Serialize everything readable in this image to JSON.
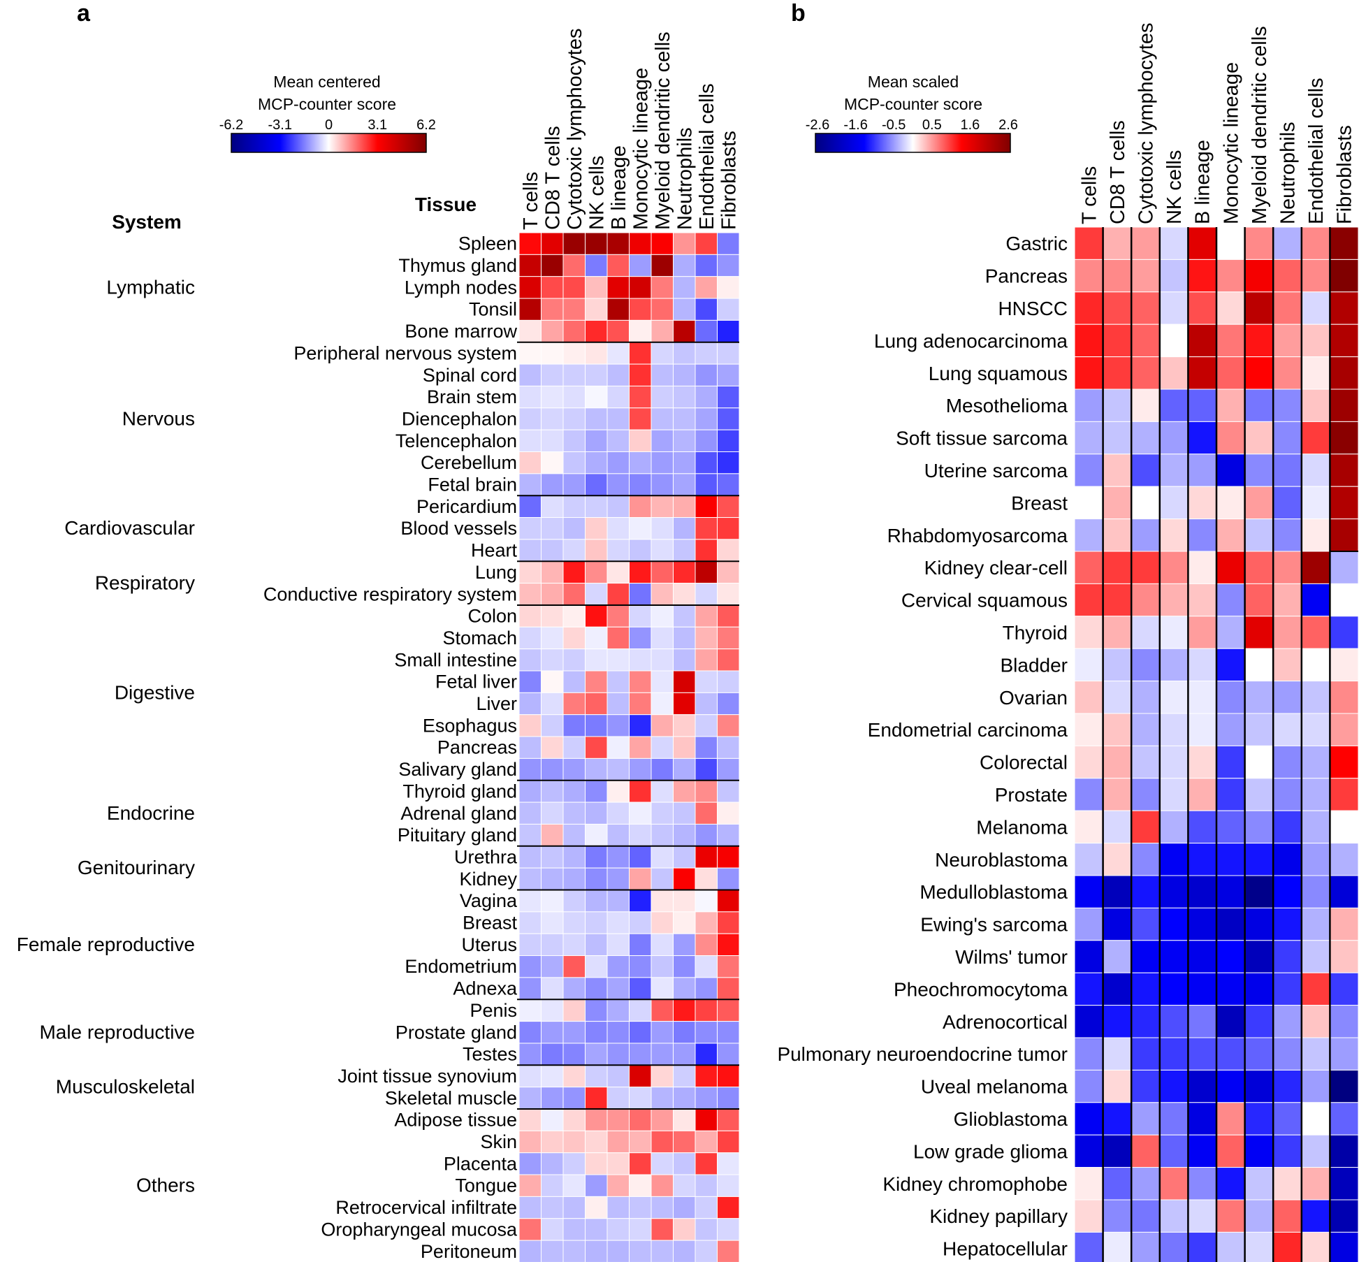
{
  "chart_data": [
    {
      "type": "heatmap",
      "panel_label": "a",
      "legend": {
        "title_line1": "Mean centered",
        "title_line2": "MCP-counter score",
        "ticks": [
          "-6.2",
          "-3.1",
          "0",
          "3.1",
          "6.2"
        ],
        "range": [
          -6.2,
          6.2
        ]
      },
      "system_header": "System",
      "tissue_header": "Tissue",
      "columns": [
        "T cells",
        "CD8 T cells",
        "Cytotoxic lymphocytes",
        "NK cells",
        "B lineage",
        "Monocytic lineage",
        "Myeloid dendritic cells",
        "Neutrophils",
        "Endothelial cells",
        "Fibroblasts"
      ],
      "groups": [
        {
          "name": "Lymphatic",
          "rows": [
            "Spleen",
            "Thymus gland",
            "Lymph nodes",
            "Tonsil",
            "Bone marrow"
          ]
        },
        {
          "name": "Nervous",
          "rows": [
            "Peripheral nervous system",
            "Spinal cord",
            "Brain stem",
            "Diencephalon",
            "Telencephalon",
            "Cerebellum",
            "Fetal brain"
          ]
        },
        {
          "name": "Cardiovascular",
          "rows": [
            "Pericardium",
            "Blood vessels",
            "Heart"
          ]
        },
        {
          "name": "Respiratory",
          "rows": [
            "Lung",
            "Conductive respiratory system"
          ]
        },
        {
          "name": "Digestive",
          "rows": [
            "Colon",
            "Stomach",
            "Small intestine",
            "Fetal liver",
            "Liver",
            "Esophagus",
            "Pancreas",
            "Salivary gland"
          ]
        },
        {
          "name": "Endocrine",
          "rows": [
            "Thyroid gland",
            "Adrenal gland",
            "Pituitary gland"
          ]
        },
        {
          "name": "Genitourinary",
          "rows": [
            "Urethra",
            "Kidney"
          ]
        },
        {
          "name": "Female reproductive",
          "rows": [
            "Vagina",
            "Breast",
            "Uterus",
            "Endometrium",
            "Adnexa"
          ]
        },
        {
          "name": "Male reproductive",
          "rows": [
            "Penis",
            "Prostate gland",
            "Testes"
          ]
        },
        {
          "name": "Musculoskeletal",
          "rows": [
            "Joint tissue synovium",
            "Skeletal muscle"
          ]
        },
        {
          "name": "Others",
          "rows": [
            "Adipose tissue",
            "Skin",
            "Placenta",
            "Tongue",
            "Retrocervical infiltrate",
            "Oropharyngeal mucosa",
            "Peritoneum"
          ]
        }
      ],
      "values": [
        [
          3.0,
          3.8,
          5.6,
          5.6,
          5.2,
          3.5,
          3.2,
          1.3,
          2.3,
          -1.6
        ],
        [
          4.5,
          5.6,
          1.8,
          -1.6,
          2.0,
          -1.2,
          5.5,
          -1.0,
          -1.8,
          -1.3
        ],
        [
          4.0,
          2.2,
          2.2,
          0.8,
          3.8,
          4.2,
          1.6,
          -0.9,
          1.1,
          0.2
        ],
        [
          4.9,
          1.6,
          1.6,
          0.5,
          5.1,
          2.2,
          1.8,
          -0.9,
          -2.2,
          -0.6
        ],
        [
          0.3,
          1.1,
          1.8,
          2.6,
          2.1,
          0.2,
          1.0,
          4.8,
          -1.8,
          -2.7
        ],
        [
          0.1,
          0.1,
          0.2,
          0.3,
          -0.3,
          2.5,
          -0.5,
          -0.7,
          -0.6,
          -0.6
        ],
        [
          -0.8,
          -0.6,
          -0.6,
          -0.6,
          -0.8,
          2.5,
          -0.8,
          -0.9,
          -1.3,
          -1.1
        ],
        [
          -0.4,
          -0.3,
          -0.4,
          -0.1,
          -0.5,
          2.2,
          -0.6,
          -0.7,
          -1.0,
          -2.0
        ],
        [
          -0.6,
          -0.5,
          -0.6,
          -0.8,
          -0.8,
          2.2,
          -0.8,
          -0.8,
          -1.1,
          -2.0
        ],
        [
          -0.4,
          -0.4,
          -0.7,
          -1.1,
          -0.8,
          0.6,
          -1.1,
          -0.9,
          -1.3,
          -2.3
        ],
        [
          0.6,
          0.1,
          -0.7,
          -1.0,
          -1.2,
          -1.0,
          -1.2,
          -1.1,
          -2.1,
          -2.5
        ],
        [
          -0.9,
          -1.2,
          -1.2,
          -1.8,
          -1.3,
          -1.5,
          -1.3,
          -1.1,
          -2.0,
          -1.8
        ],
        [
          -1.8,
          -0.4,
          -0.6,
          -0.6,
          -0.7,
          1.3,
          0.9,
          1.0,
          3.2,
          2.1
        ],
        [
          -0.6,
          -0.6,
          -0.8,
          0.6,
          -0.4,
          -0.2,
          -0.4,
          -0.9,
          2.3,
          2.4
        ],
        [
          -0.7,
          -0.7,
          -0.5,
          0.7,
          -0.5,
          -0.7,
          -0.4,
          -0.7,
          2.5,
          0.5
        ],
        [
          0.5,
          0.9,
          2.8,
          1.4,
          0.3,
          2.8,
          1.9,
          2.6,
          4.7,
          0.8
        ],
        [
          0.8,
          1.0,
          1.8,
          -0.5,
          2.3,
          -1.7,
          0.8,
          0.4,
          -0.5,
          0.3
        ],
        [
          0.5,
          0.4,
          0.2,
          2.9,
          1.6,
          -0.5,
          -0.2,
          -0.7,
          1.1,
          2.0
        ],
        [
          -0.5,
          -0.3,
          0.5,
          -0.2,
          1.8,
          -1.3,
          -0.4,
          -0.8,
          0.9,
          1.6
        ],
        [
          -0.7,
          -0.5,
          -0.6,
          -0.3,
          -0.3,
          -0.4,
          -0.4,
          -0.8,
          1.1,
          1.9
        ],
        [
          -1.5,
          0.1,
          -0.8,
          1.5,
          -0.7,
          1.5,
          -0.3,
          4.1,
          -0.5,
          -0.6
        ],
        [
          -0.9,
          -0.4,
          1.6,
          1.9,
          -0.8,
          1.6,
          -0.2,
          3.8,
          -0.8,
          -1.4
        ],
        [
          0.6,
          -0.6,
          -1.6,
          -1.6,
          -1.3,
          -2.6,
          1.0,
          0.6,
          -0.6,
          1.5
        ],
        [
          -0.8,
          0.5,
          -0.6,
          2.2,
          -0.2,
          1.1,
          -0.5,
          0.7,
          -1.5,
          -0.8
        ],
        [
          -1.3,
          -1.3,
          -1.2,
          -0.9,
          -0.8,
          -1.2,
          -1.6,
          -1.0,
          -2.2,
          -1.2
        ],
        [
          -1.0,
          -0.8,
          -1.0,
          -1.4,
          0.2,
          2.5,
          -0.4,
          1.1,
          1.4,
          -0.7
        ],
        [
          -0.8,
          -0.5,
          -0.8,
          -0.9,
          -0.5,
          -0.2,
          -0.6,
          -0.7,
          1.8,
          0.2
        ],
        [
          -0.7,
          0.9,
          -0.8,
          -0.2,
          -0.8,
          -0.5,
          -0.7,
          -0.9,
          -1.3,
          -0.9
        ],
        [
          -0.8,
          -0.7,
          -0.9,
          -1.6,
          -1.3,
          -1.9,
          -0.4,
          -0.7,
          3.6,
          3.3
        ],
        [
          -0.8,
          -0.9,
          -1.0,
          -1.4,
          -1.2,
          1.1,
          -0.7,
          3.2,
          0.4,
          -1.3
        ],
        [
          -0.3,
          -0.2,
          -0.6,
          -0.9,
          -0.9,
          -2.7,
          0.3,
          0.3,
          -0.1,
          3.7
        ],
        [
          -0.5,
          -0.3,
          -0.5,
          -0.6,
          -0.4,
          -0.6,
          0.5,
          0.2,
          0.9,
          2.3
        ],
        [
          -0.6,
          -0.6,
          -0.5,
          -0.8,
          -0.4,
          -1.6,
          -0.4,
          -1.2,
          1.4,
          2.9
        ],
        [
          -1.3,
          -1.0,
          2.0,
          -0.4,
          -1.2,
          -1.4,
          -0.7,
          -1.4,
          -0.4,
          1.7
        ],
        [
          -1.3,
          -0.4,
          -1.0,
          -1.4,
          -1.1,
          -2.0,
          -0.3,
          -1.0,
          -1.3,
          2.0
        ],
        [
          -0.2,
          -0.3,
          0.6,
          -1.4,
          -1.0,
          -0.5,
          2.0,
          2.8,
          2.3,
          2.0
        ],
        [
          -1.5,
          -1.2,
          -1.2,
          -1.5,
          -1.4,
          -1.8,
          -1.2,
          -1.6,
          -1.4,
          -1.4
        ],
        [
          -1.3,
          -1.6,
          -1.5,
          -1.1,
          -1.3,
          -1.3,
          -1.2,
          -1.2,
          -2.6,
          -1.3
        ],
        [
          -0.4,
          -0.3,
          0.5,
          -0.6,
          -0.7,
          4.0,
          0.5,
          -0.6,
          2.8,
          2.9
        ],
        [
          -0.9,
          -1.2,
          -1.3,
          2.6,
          -0.6,
          -0.5,
          -0.9,
          -1.0,
          -1.2,
          -1.4
        ],
        [
          0.5,
          -0.2,
          0.5,
          1.3,
          1.3,
          1.8,
          1.2,
          0.3,
          3.5,
          2.0
        ],
        [
          0.9,
          0.6,
          0.7,
          0.5,
          1.1,
          0.9,
          2.0,
          1.8,
          1.0,
          2.3
        ],
        [
          -1.2,
          -0.9,
          -0.6,
          0.5,
          0.5,
          2.3,
          -0.5,
          -0.7,
          2.4,
          -0.3
        ],
        [
          1.0,
          -0.6,
          -0.3,
          -1.2,
          1.0,
          0.2,
          1.3,
          -0.5,
          -0.7,
          -0.4
        ],
        [
          -0.8,
          -0.7,
          -0.8,
          0.2,
          -0.8,
          -0.7,
          -0.8,
          -1.0,
          -0.6,
          2.7
        ],
        [
          1.7,
          -0.5,
          -0.8,
          -0.8,
          -0.6,
          -0.5,
          2.0,
          0.6,
          -0.7,
          -0.5
        ],
        [
          -0.9,
          -0.8,
          -0.8,
          -0.9,
          -0.9,
          -0.8,
          -0.8,
          -0.9,
          -0.6,
          1.6
        ]
      ]
    },
    {
      "type": "heatmap",
      "panel_label": "b",
      "legend": {
        "title_line1": "Mean scaled",
        "title_line2": "MCP-counter score",
        "ticks": [
          "-2.6",
          "-1.6",
          "-0.5",
          "0.5",
          "1.6",
          "2.6"
        ],
        "range": [
          -2.6,
          2.6
        ]
      },
      "columns": [
        "T cells",
        "CD8 T cells",
        "Cytotoxic lymphocytes",
        "NK cells",
        "B lineage",
        "Monocytic lineage",
        "Myeloid dendritic cells",
        "Neutrophils",
        "Endothelial cells",
        "Fibroblasts"
      ],
      "rows": [
        "Gastric",
        "Pancreas",
        "HNSCC",
        "Lung adenocarcinoma",
        "Lung squamous",
        "Mesothelioma",
        "Soft tissue sarcoma",
        "Uterine sarcoma",
        "Breast",
        "Rhabdomyosarcoma",
        "Kidney clear-cell",
        "Cervical squamous",
        "Thyroid",
        "Bladder",
        "Ovarian",
        "Endometrial carcinoma",
        "Colorectal",
        "Prostate",
        "Melanoma",
        "Neuroblastoma",
        "Medulloblastoma",
        "Ewing's sarcoma",
        "Wilms' tumor",
        "Pheochromocytoma",
        "Adrenocortical",
        "Pulmonary neuroendocrine tumor",
        "Uveal melanoma",
        "Glioblastoma",
        "Low grade glioma",
        "Kidney chromophobe",
        "Kidney papillary",
        "Hepatocellular"
      ],
      "values": [
        [
          1.0,
          0.4,
          0.5,
          -0.2,
          1.6,
          0.0,
          0.6,
          -0.4,
          0.6,
          2.5
        ],
        [
          0.6,
          0.6,
          0.5,
          -0.3,
          1.2,
          0.6,
          1.4,
          0.8,
          0.6,
          2.6
        ],
        [
          1.1,
          0.9,
          0.8,
          -0.2,
          0.9,
          0.2,
          2.0,
          0.7,
          -0.2,
          2.1
        ],
        [
          1.2,
          1.0,
          0.8,
          0.0,
          2.0,
          0.7,
          1.2,
          0.5,
          0.3,
          2.1
        ],
        [
          1.2,
          1.0,
          0.8,
          0.3,
          1.9,
          0.8,
          1.3,
          0.6,
          0.1,
          2.2
        ],
        [
          -0.5,
          -0.3,
          0.1,
          -0.8,
          -0.8,
          0.4,
          -0.7,
          -0.6,
          0.3,
          2.3
        ],
        [
          -0.4,
          -0.3,
          -0.4,
          -0.5,
          -1.2,
          0.6,
          0.3,
          -0.6,
          1.0,
          2.5
        ],
        [
          -0.6,
          0.3,
          -0.9,
          -0.4,
          -0.5,
          -1.6,
          -0.6,
          -0.7,
          -0.2,
          2.2
        ],
        [
          0.0,
          0.4,
          0.0,
          -0.2,
          0.2,
          0.1,
          0.5,
          -0.8,
          -0.1,
          2.1
        ],
        [
          -0.4,
          0.3,
          -0.5,
          0.2,
          -0.6,
          0.4,
          -0.3,
          -0.6,
          0.1,
          2.2
        ],
        [
          0.8,
          1.0,
          1.0,
          0.6,
          0.1,
          1.5,
          0.8,
          0.6,
          2.3,
          -0.4
        ],
        [
          1.0,
          1.0,
          0.6,
          0.4,
          0.3,
          -0.6,
          0.8,
          0.4,
          -1.4,
          0.0
        ],
        [
          0.2,
          0.4,
          -0.2,
          -0.1,
          0.5,
          -0.4,
          1.6,
          0.5,
          0.8,
          -1.0
        ],
        [
          -0.1,
          -0.3,
          -0.6,
          -0.4,
          -0.2,
          -1.2,
          0.0,
          0.3,
          0.0,
          0.1
        ],
        [
          0.3,
          -0.2,
          -0.4,
          -0.1,
          -0.1,
          -0.6,
          -0.4,
          -0.5,
          -0.3,
          0.6
        ],
        [
          0.1,
          0.3,
          -0.4,
          -0.2,
          -0.1,
          -0.5,
          -0.3,
          -0.2,
          -0.2,
          0.5
        ],
        [
          0.2,
          0.4,
          -0.3,
          -0.2,
          0.2,
          -1.0,
          0.0,
          -0.6,
          -0.4,
          1.3
        ],
        [
          -0.6,
          0.4,
          -0.6,
          -0.2,
          0.4,
          -1.0,
          -0.3,
          -0.6,
          -0.4,
          1.0
        ],
        [
          0.1,
          -0.2,
          1.0,
          -0.4,
          -0.9,
          -0.8,
          -0.6,
          -1.0,
          -0.4,
          0.0
        ],
        [
          -0.3,
          0.2,
          -0.6,
          -1.4,
          -1.2,
          -1.2,
          -1.2,
          -1.5,
          -0.5,
          -0.4
        ],
        [
          -1.4,
          -2.0,
          -1.2,
          -1.6,
          -1.8,
          -1.6,
          -2.5,
          -1.3,
          -0.6,
          -1.7
        ],
        [
          -0.5,
          -1.6,
          -0.9,
          -1.3,
          -1.6,
          -1.9,
          -1.6,
          -1.2,
          -0.4,
          0.4
        ],
        [
          -1.6,
          -0.4,
          -1.4,
          -1.4,
          -1.5,
          -1.3,
          -2.0,
          -1.0,
          -0.3,
          0.3
        ],
        [
          -1.2,
          -1.8,
          -1.2,
          -1.3,
          -1.4,
          -1.4,
          -1.5,
          -1.0,
          1.0,
          -1.0
        ],
        [
          -1.7,
          -1.2,
          -1.1,
          -0.9,
          -0.7,
          -2.0,
          -1.0,
          -0.5,
          0.3,
          -0.6
        ],
        [
          -0.6,
          -0.2,
          -1.0,
          -1.0,
          -0.9,
          -0.9,
          -0.8,
          -0.6,
          -0.3,
          -0.5
        ],
        [
          -0.6,
          0.2,
          -1.0,
          -1.2,
          -1.8,
          -1.4,
          -1.7,
          -1.1,
          -0.5,
          -2.6
        ],
        [
          -1.4,
          -1.2,
          -0.5,
          -0.7,
          -1.6,
          0.6,
          -1.1,
          -0.8,
          0.0,
          -0.8
        ],
        [
          -1.6,
          -2.0,
          0.8,
          -0.8,
          -1.4,
          0.8,
          -1.4,
          -1.0,
          -0.3,
          -2.2
        ],
        [
          0.1,
          -0.8,
          -0.5,
          0.7,
          -0.6,
          -1.2,
          -0.3,
          0.2,
          0.4,
          -2.0
        ],
        [
          0.2,
          -0.6,
          -0.7,
          -0.3,
          -0.2,
          0.7,
          -0.4,
          0.8,
          -1.2,
          -2.1
        ],
        [
          -0.8,
          -0.1,
          -0.5,
          -0.7,
          -1.0,
          -0.3,
          -0.2,
          1.1,
          0.2,
          -1.6
        ]
      ]
    }
  ]
}
